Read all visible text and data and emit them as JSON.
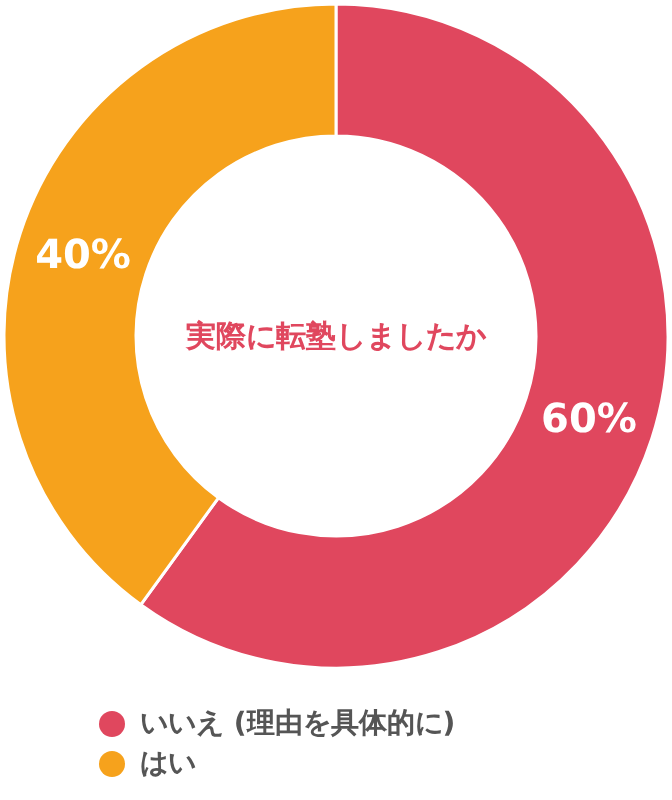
{
  "chart_data": {
    "type": "donut",
    "title": "実際に転塾しましたか",
    "categories": [
      "いいえ (理由を具体的に)",
      "はい"
    ],
    "values": [
      60,
      40
    ],
    "colors": [
      "#e0475e",
      "#f6a21c"
    ],
    "value_labels": [
      "60%",
      "40%"
    ],
    "legend": "bottom"
  }
}
